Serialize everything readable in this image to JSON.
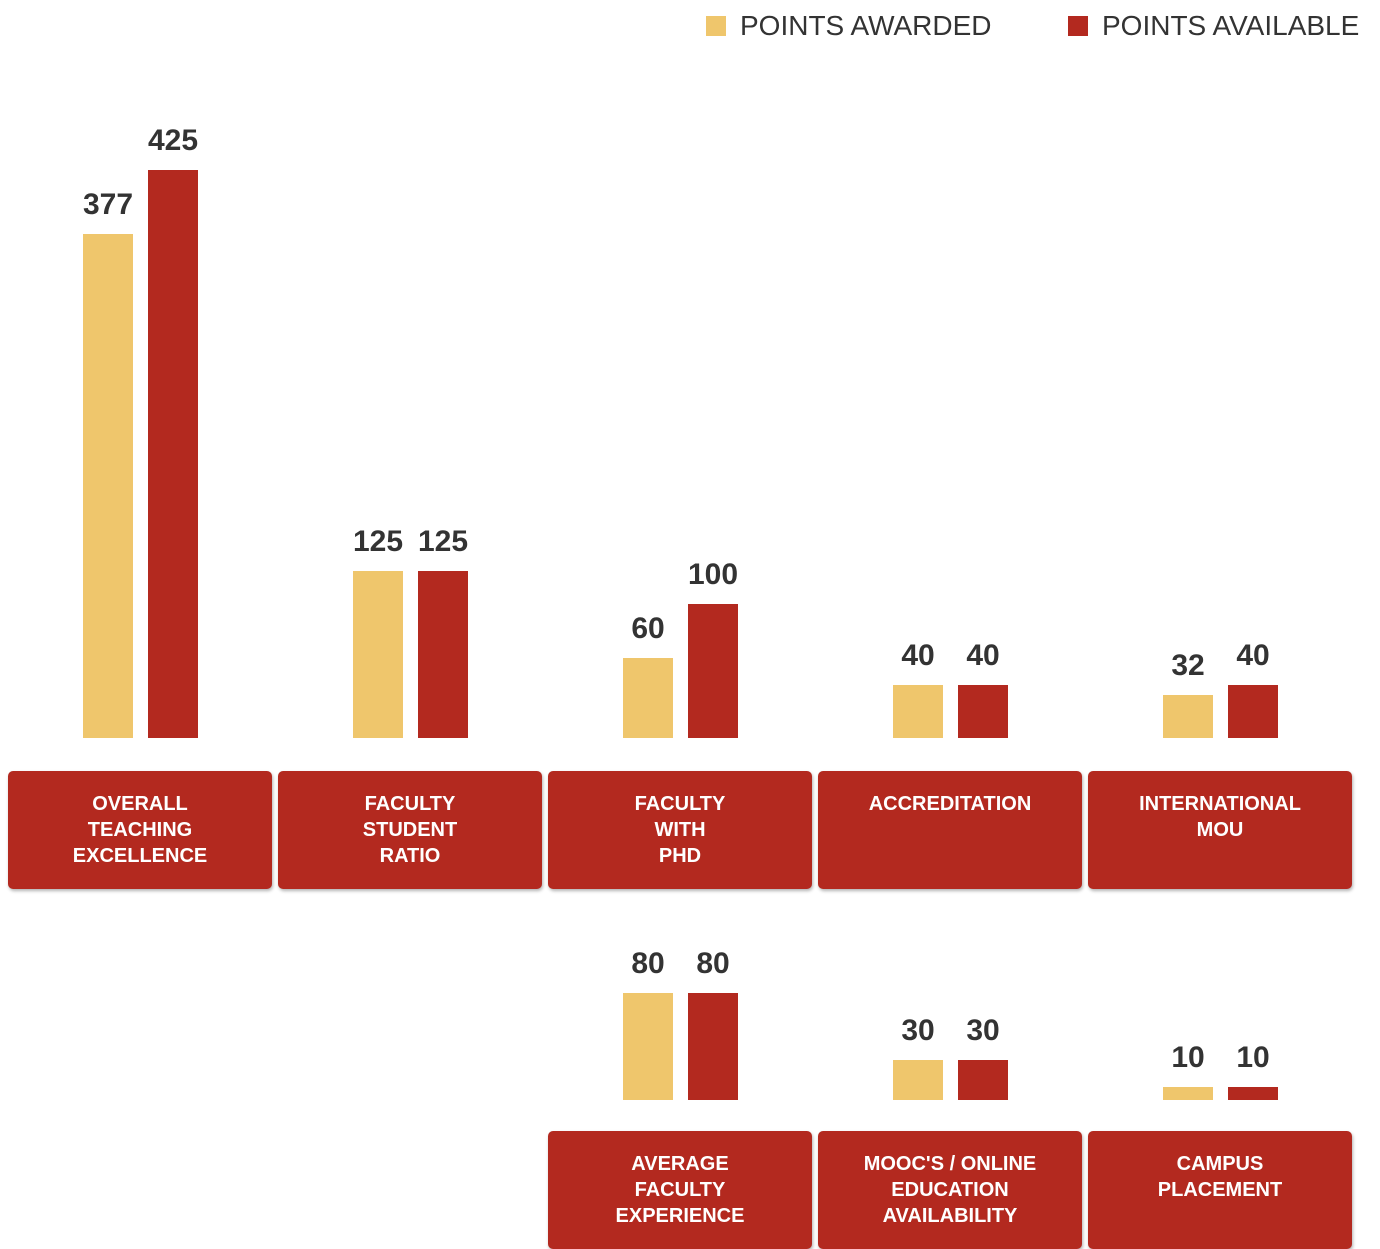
{
  "chart_data": {
    "type": "bar",
    "categories": [
      "OVERALL\nTEACHING\nEXCELLENCE",
      "FACULTY\nSTUDENT\nRATIO",
      "FACULTY\nWITH\nPHD",
      "ACCREDITATION",
      "INTERNATIONAL\nMOU",
      "AVERAGE\nFACULTY\nEXPERIENCE",
      "MOOC'S / ONLINE\nEDUCATION\nAVAILABILITY",
      "CAMPUS\nPLACEMENT"
    ],
    "series": [
      {
        "name": "POINTS AWARDED",
        "color": "#efc66c",
        "values": [
          377,
          125,
          60,
          40,
          32,
          80,
          30,
          10
        ]
      },
      {
        "name": "POINTS AVAILABLE",
        "color": "#b3291f",
        "values": [
          425,
          125,
          100,
          40,
          40,
          80,
          30,
          10
        ]
      }
    ],
    "ylim": [
      0,
      425
    ],
    "label_color": "#b3291f"
  }
}
